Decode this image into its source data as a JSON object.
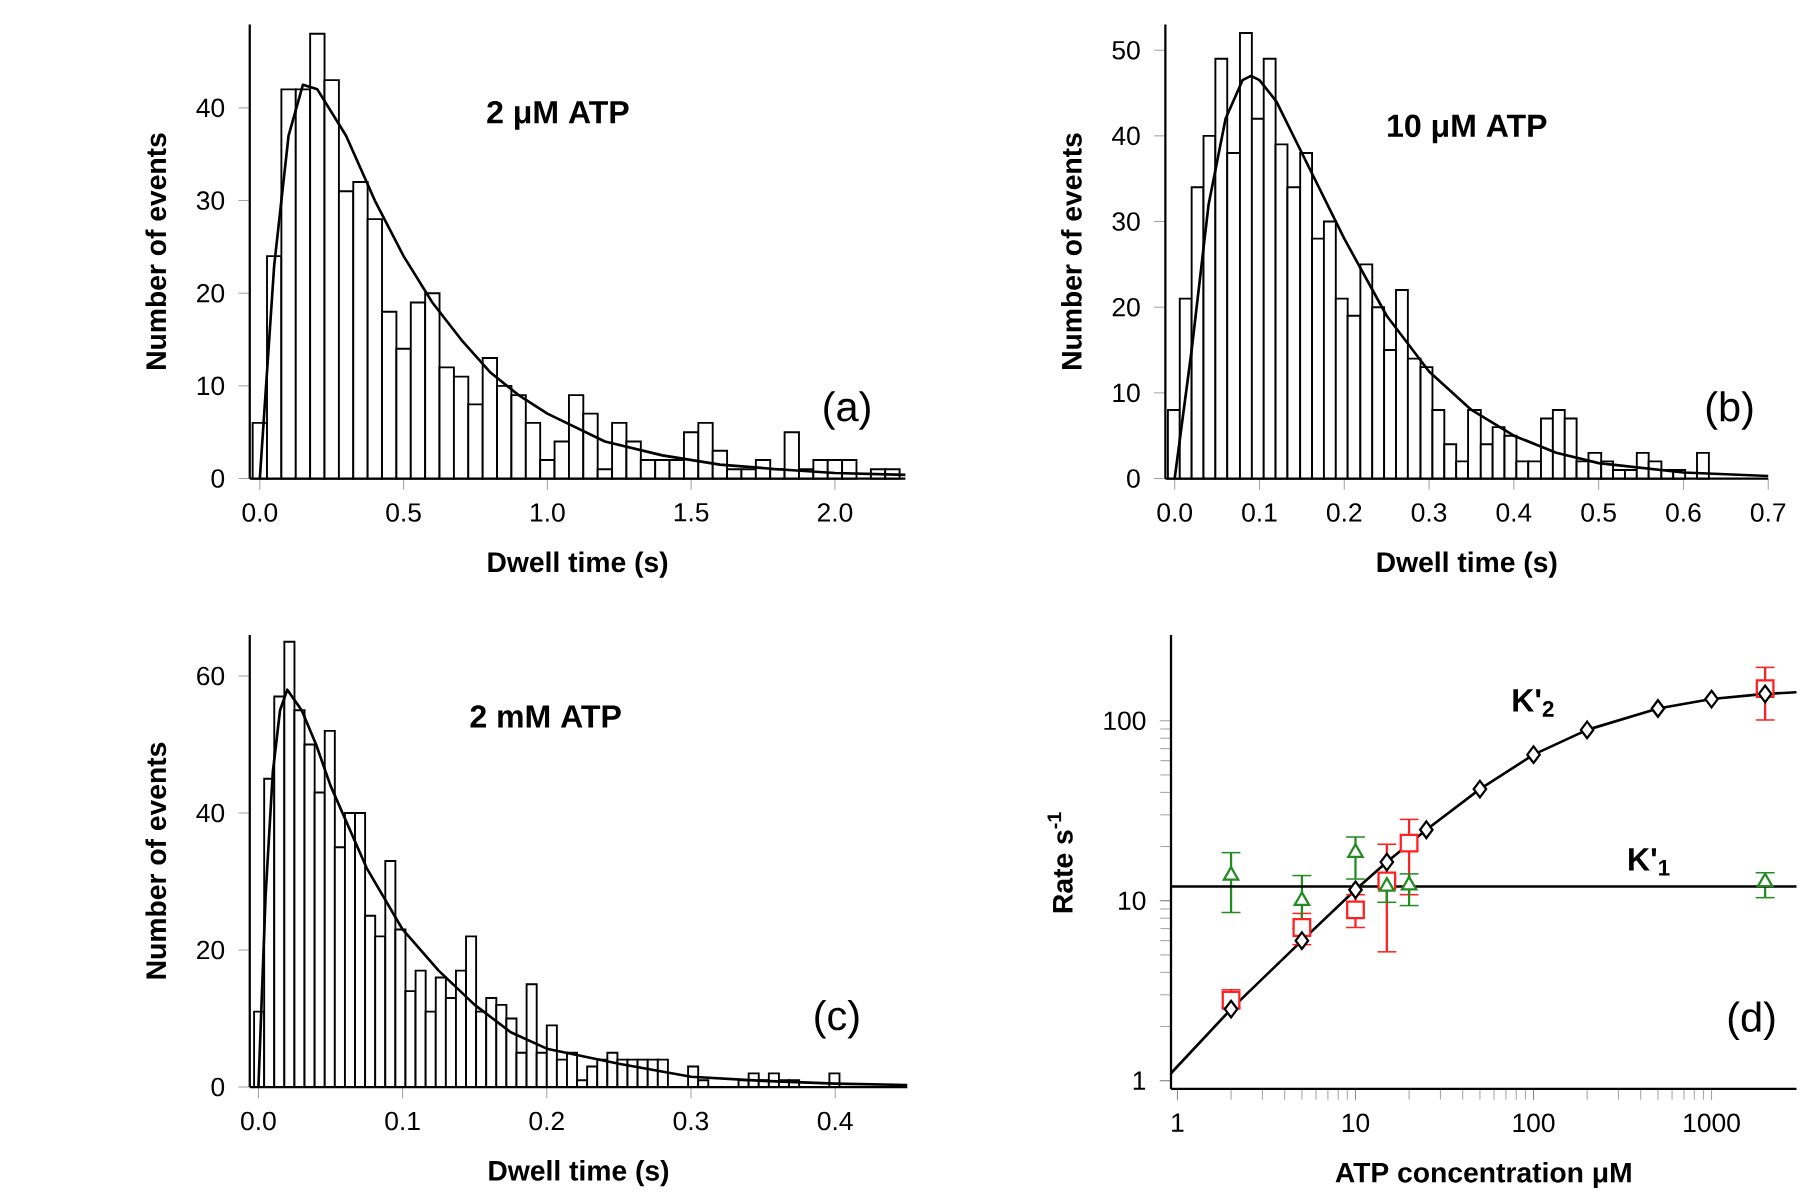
{
  "chart_data": [
    {
      "type": "histogram",
      "xlabel": "Dwell time (s)",
      "ylabel": "Number of events",
      "color": "#ffffff",
      "xlim": [
        -0.035,
        2.245
      ],
      "ylim": [
        0,
        49
      ],
      "xticks": [
        {
          "value": 0,
          "label": "0.0"
        },
        {
          "value": 0.5,
          "label": "0.5"
        },
        {
          "value": 1,
          "label": "1.0"
        },
        {
          "value": 1.5,
          "label": "1.5"
        },
        {
          "value": 2,
          "label": "2.0"
        }
      ],
      "yticks": [
        0,
        10,
        20,
        30,
        40
      ],
      "bins": [
        -0.025,
        0.025,
        0.075,
        0.125,
        0.175,
        0.225,
        0.275,
        0.325,
        0.375,
        0.425,
        0.475,
        0.525,
        0.575,
        0.625,
        0.675,
        0.725,
        0.775,
        0.825,
        0.875,
        0.925,
        0.975,
        1.025,
        1.075,
        1.125,
        1.175,
        1.225,
        1.275,
        1.325,
        1.375,
        1.425,
        1.475,
        1.525,
        1.575,
        1.625,
        1.675,
        1.725,
        1.775,
        1.825,
        1.875,
        1.925,
        1.975,
        2.025,
        2.075,
        2.125,
        2.175,
        2.225
      ],
      "values": [
        6,
        24,
        42,
        42,
        48,
        43,
        31,
        32,
        28,
        18,
        14,
        19,
        20,
        12,
        11,
        8,
        13,
        10,
        9,
        6,
        2,
        4,
        9,
        7,
        1,
        6,
        4,
        2,
        2,
        2,
        5,
        6,
        3,
        1,
        1,
        2,
        1,
        5,
        1,
        2,
        2,
        2,
        0,
        1,
        1
      ],
      "series": [
        {
          "type": "line",
          "color": "#000000",
          "x": [
            0,
            0.05,
            0.1,
            0.15,
            0.2,
            0.3,
            0.4,
            0.5,
            0.6,
            0.7,
            0.8,
            0.9,
            1.0,
            1.2,
            1.4,
            1.6,
            1.8,
            2.0,
            2.245
          ],
          "values": [
            0,
            23,
            37,
            42.5,
            42,
            37,
            30,
            24,
            19,
            15,
            11.5,
            9,
            7,
            4,
            2.5,
            1.5,
            1,
            0.6,
            0.4
          ]
        }
      ],
      "annotations": [
        "2 μM ATP",
        "(a)"
      ]
    },
    {
      "type": "histogram",
      "xlabel": "Dwell time (s)",
      "ylabel": "Number of events",
      "color": "#ffffff",
      "xlim": [
        -0.011,
        0.7
      ],
      "ylim": [
        0,
        53
      ],
      "xticks": [
        {
          "value": 0,
          "label": "0.0"
        },
        {
          "value": 0.1,
          "label": "0.1"
        },
        {
          "value": 0.2,
          "label": "0.2"
        },
        {
          "value": 0.3,
          "label": "0.3"
        },
        {
          "value": 0.4,
          "label": "0.4"
        },
        {
          "value": 0.5,
          "label": "0.5"
        },
        {
          "value": 0.6,
          "label": "0.6"
        },
        {
          "value": 0.7,
          "label": "0.7"
        }
      ],
      "yticks": [
        0,
        10,
        20,
        30,
        40,
        50
      ],
      "bins": [
        -0.008,
        0.006,
        0.02,
        0.034,
        0.048,
        0.062,
        0.077,
        0.091,
        0.105,
        0.119,
        0.133,
        0.148,
        0.162,
        0.176,
        0.19,
        0.204,
        0.219,
        0.233,
        0.247,
        0.261,
        0.275,
        0.29,
        0.304,
        0.318,
        0.332,
        0.346,
        0.361,
        0.375,
        0.389,
        0.403,
        0.417,
        0.432,
        0.446,
        0.46,
        0.474,
        0.488,
        0.503,
        0.517,
        0.531,
        0.545,
        0.559,
        0.574,
        0.588,
        0.602,
        0.616,
        0.63
      ],
      "values": [
        8,
        21,
        34,
        40,
        49,
        38,
        52,
        42,
        49,
        39,
        34,
        38,
        28,
        30,
        21,
        19,
        25,
        20,
        15,
        22,
        14,
        13,
        8,
        4,
        2,
        8,
        4,
        6,
        5,
        2,
        2,
        7,
        8,
        7,
        2,
        3,
        2,
        1,
        1,
        3,
        2,
        1,
        1,
        0,
        3
      ],
      "series": [
        {
          "type": "line",
          "color": "#000000",
          "x": [
            0,
            0.02,
            0.04,
            0.06,
            0.08,
            0.09,
            0.1,
            0.12,
            0.15,
            0.2,
            0.25,
            0.3,
            0.35,
            0.4,
            0.45,
            0.5,
            0.6,
            0.7
          ],
          "values": [
            0,
            15,
            32,
            42,
            46.5,
            47,
            46.5,
            44,
            38,
            28,
            19,
            12.5,
            8,
            5,
            3,
            1.8,
            0.7,
            0.3
          ]
        }
      ],
      "annotations": [
        "10 μM ATP",
        "(b)"
      ]
    },
    {
      "type": "histogram",
      "xlabel": "Dwell time (s)",
      "ylabel": "Number of events",
      "color": "#ffffff",
      "xlim": [
        -0.006,
        0.45
      ],
      "ylim": [
        0,
        66
      ],
      "xticks": [
        {
          "value": 0,
          "label": "0.0"
        },
        {
          "value": 0.1,
          "label": "0.1"
        },
        {
          "value": 0.2,
          "label": "0.2"
        },
        {
          "value": 0.3,
          "label": "0.3"
        },
        {
          "value": 0.4,
          "label": "0.4"
        }
      ],
      "yticks": [
        0,
        20,
        40,
        60
      ],
      "bins": [
        -0.003,
        0.004,
        0.011,
        0.018,
        0.025,
        0.032,
        0.039,
        0.046,
        0.053,
        0.06,
        0.067,
        0.074,
        0.081,
        0.088,
        0.095,
        0.102,
        0.109,
        0.116,
        0.123,
        0.13,
        0.137,
        0.144,
        0.151,
        0.158,
        0.165,
        0.172,
        0.179,
        0.186,
        0.193,
        0.2,
        0.207,
        0.214,
        0.221,
        0.228,
        0.235,
        0.242,
        0.249,
        0.256,
        0.263,
        0.27,
        0.277,
        0.284,
        0.291,
        0.298,
        0.305,
        0.312,
        0.319,
        0.326,
        0.333,
        0.34,
        0.347,
        0.354,
        0.361,
        0.368,
        0.375,
        0.382,
        0.389,
        0.396,
        0.403
      ],
      "values": [
        11,
        45,
        57,
        65,
        55,
        50,
        43,
        52,
        35,
        40,
        40,
        25,
        22,
        33,
        23,
        14,
        17,
        11,
        16,
        13,
        17,
        22,
        11,
        13,
        12,
        10,
        5,
        15,
        5,
        9,
        4,
        5,
        1,
        3,
        4,
        5,
        4,
        4,
        4,
        4,
        4,
        0,
        0,
        3,
        1,
        0,
        0,
        0,
        1,
        2,
        1,
        2,
        1,
        1,
        0,
        0,
        0,
        2
      ],
      "series": [
        {
          "type": "line",
          "color": "#000000",
          "x": [
            0,
            0.005,
            0.01,
            0.015,
            0.02,
            0.03,
            0.04,
            0.05,
            0.075,
            0.1,
            0.125,
            0.15,
            0.175,
            0.2,
            0.25,
            0.3,
            0.35,
            0.4,
            0.45
          ],
          "values": [
            0,
            28,
            46,
            55,
            58,
            55,
            50,
            44,
            32,
            23,
            17,
            12,
            8,
            5.6,
            3.4,
            1.5,
            0.9,
            0.5,
            0.3
          ]
        }
      ],
      "annotations": [
        "2 mM ATP",
        "(c)"
      ]
    },
    {
      "type": "scatter",
      "xlabel": "ATP concentration μM",
      "ylabel": "Rate s$^{-1}$",
      "log": "xy",
      "xlim": [
        0.92,
        3000
      ],
      "ylim": [
        0.9,
        300
      ],
      "xticks": [
        1,
        10,
        100,
        1000
      ],
      "yticks": [
        1,
        10,
        100
      ],
      "series": [
        {
          "type": "line",
          "color": "#000000",
          "x": [
            0.92,
            2,
            5,
            10,
            15,
            25,
            50,
            100,
            200,
            500,
            1000,
            2000,
            3000
          ],
          "values": [
            1.1,
            2.5,
            6,
            11.5,
            16.4,
            24.8,
            41.7,
            64.8,
            89,
            117,
            132,
            141,
            144
          ]
        },
        {
          "color": "#ff2020",
          "marker": "square",
          "x": [
            2,
            5,
            10,
            15,
            20,
            2000
          ],
          "values": [
            2.8,
            7.1,
            8.9,
            12.9,
            20.9,
            151
          ],
          "errors": [
            [
              2.55,
              3.2
            ],
            [
              5.7,
              8.5
            ],
            [
              7.1,
              10.8
            ],
            [
              5.2,
              20.6
            ],
            [
              10.8,
              28.3
            ],
            [
              101,
              198
            ]
          ]
        },
        {
          "color": "#228b22",
          "marker": "triangle",
          "x": [
            2,
            5,
            10,
            15,
            20,
            2000
          ],
          "values": [
            13.8,
            10,
            18.5,
            12,
            12.2,
            12.7
          ],
          "errors": [
            [
              8.6,
              18.5
            ],
            [
              7,
              13.8
            ],
            [
              13.2,
              22.6
            ],
            [
              9.8,
              13.2
            ],
            [
              9.4,
              14.1
            ],
            [
              10.4,
              14.3
            ]
          ]
        },
        {
          "color": "#000000",
          "marker": "diamond",
          "x": [
            2,
            5,
            10,
            15,
            25,
            50,
            100,
            200,
            500,
            1000,
            2000
          ],
          "values": [
            2.5,
            6,
            11.5,
            16.4,
            24.8,
            41.7,
            64.8,
            89,
            117,
            132,
            141
          ]
        }
      ],
      "ref_lines": [
        {
          "axis": "y",
          "value": 12
        }
      ],
      "annotations": [
        "(d)",
        "K'$_{2}$",
        "K'$_{1}$"
      ]
    }
  ]
}
